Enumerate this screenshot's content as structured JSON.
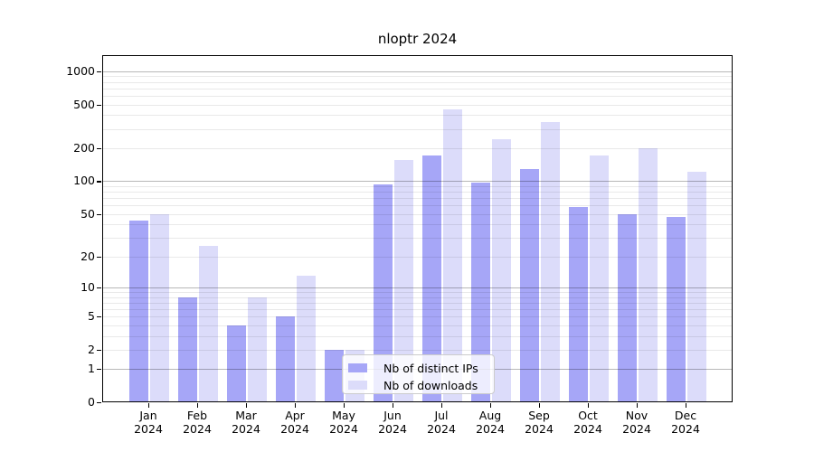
{
  "figure": {
    "title": "nloptr 2024"
  },
  "chart_data": {
    "type": "bar",
    "title": "nloptr 2024",
    "year": "2024",
    "months": [
      "Jan",
      "Feb",
      "Mar",
      "Apr",
      "May",
      "Jun",
      "Jul",
      "Aug",
      "Sep",
      "Oct",
      "Nov",
      "Dec"
    ],
    "categories": [
      "Jan 2024",
      "Feb 2024",
      "Mar 2024",
      "Apr 2024",
      "May 2024",
      "Jun 2024",
      "Jul 2024",
      "Aug 2024",
      "Sep 2024",
      "Oct 2024",
      "Nov 2024",
      "Dec 2024"
    ],
    "series": [
      {
        "name": "Nb of distinct IPs",
        "color": "#a6a6f7",
        "values": [
          43,
          8,
          4,
          5,
          2,
          93,
          170,
          97,
          130,
          58,
          50,
          47
        ]
      },
      {
        "name": "Nb of downloads",
        "color": "#dcdcfa",
        "values": [
          50,
          25,
          8,
          13,
          2,
          155,
          450,
          240,
          345,
          170,
          200,
          122
        ]
      }
    ],
    "y_scale": "log1p",
    "y_ticks": [
      0,
      1,
      2,
      5,
      10,
      20,
      50,
      100,
      200,
      500,
      1000
    ],
    "y_max": 1400,
    "grid": {
      "major": [
        1,
        10,
        100,
        1000
      ],
      "minor": [
        2,
        3,
        4,
        5,
        6,
        7,
        8,
        9,
        20,
        30,
        40,
        50,
        60,
        70,
        80,
        90,
        200,
        300,
        400,
        500,
        600,
        700,
        800,
        900
      ]
    },
    "legend_position": "lower-center",
    "grid_on": true
  }
}
